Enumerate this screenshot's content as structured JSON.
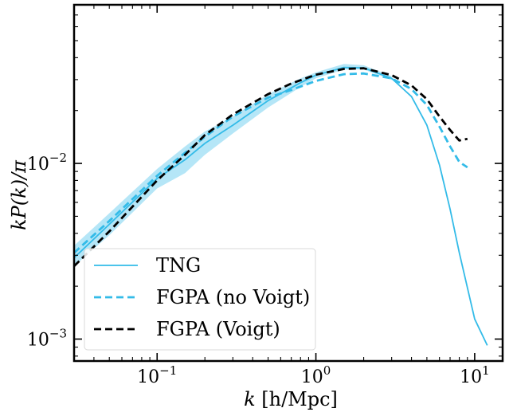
{
  "chart_data": {
    "type": "line",
    "xlabel": "k [h/Mpc]",
    "ylabel": "kP(k)/π",
    "xscale": "log",
    "yscale": "log",
    "xlim": [
      0.03,
      15
    ],
    "ylim": [
      0.00075,
      0.08
    ],
    "x_tick_labels": [
      "10^-1",
      "10^0",
      "10^1"
    ],
    "y_tick_labels": [
      "10^-3",
      "10^-2"
    ],
    "legend_position": "lower-left",
    "series": [
      {
        "name": "TNG",
        "style": "solid",
        "color": "#33bbe8",
        "x": [
          0.03,
          0.05,
          0.1,
          0.15,
          0.2,
          0.3,
          0.5,
          0.8,
          1.0,
          1.5,
          2.0,
          3.0,
          4.0,
          5.0,
          6.0,
          7.0,
          8.0,
          10.0,
          12.0
        ],
        "y": [
          0.0029,
          0.0045,
          0.0082,
          0.0105,
          0.013,
          0.0165,
          0.0228,
          0.0288,
          0.0318,
          0.0352,
          0.035,
          0.0305,
          0.024,
          0.0165,
          0.0098,
          0.0055,
          0.0031,
          0.0013,
          0.00092
        ]
      },
      {
        "name": "FGPA (no Voigt)",
        "style": "dashed",
        "color": "#33bbe8",
        "x": [
          0.03,
          0.05,
          0.1,
          0.15,
          0.2,
          0.3,
          0.5,
          0.7,
          1.0,
          1.5,
          2.0,
          3.0,
          4.0,
          5.0,
          6.0,
          7.0,
          8.0,
          9.0
        ],
        "y": [
          0.0031,
          0.0047,
          0.0085,
          0.0115,
          0.0142,
          0.0185,
          0.0237,
          0.0262,
          0.0295,
          0.0322,
          0.0325,
          0.0305,
          0.0265,
          0.0215,
          0.0162,
          0.0125,
          0.0102,
          0.0095
        ]
      },
      {
        "name": "FGPA (Voigt)",
        "style": "dashed",
        "color": "#000000",
        "x": [
          0.03,
          0.05,
          0.1,
          0.15,
          0.2,
          0.3,
          0.5,
          0.7,
          1.0,
          1.5,
          2.0,
          3.0,
          4.0,
          5.0,
          6.0,
          7.0,
          8.0,
          9.0
        ],
        "y": [
          0.0026,
          0.0041,
          0.008,
          0.0112,
          0.0145,
          0.019,
          0.0248,
          0.0285,
          0.032,
          0.0345,
          0.0348,
          0.0318,
          0.0278,
          0.0232,
          0.0185,
          0.0155,
          0.0135,
          0.0138
        ]
      }
    ],
    "band": {
      "series": "TNG",
      "color": "#a8e2f6",
      "x": [
        0.03,
        0.05,
        0.1,
        0.15,
        0.2,
        0.3,
        0.5,
        0.8,
        1.0,
        1.5,
        2.0,
        3.0
      ],
      "lower": [
        0.0026,
        0.0039,
        0.0072,
        0.0088,
        0.0112,
        0.0148,
        0.0208,
        0.0272,
        0.0305,
        0.0342,
        0.0342,
        0.0298
      ],
      "upper": [
        0.0034,
        0.0052,
        0.0093,
        0.0125,
        0.0152,
        0.0185,
        0.0248,
        0.0305,
        0.033,
        0.0368,
        0.0362,
        0.0314
      ]
    }
  }
}
